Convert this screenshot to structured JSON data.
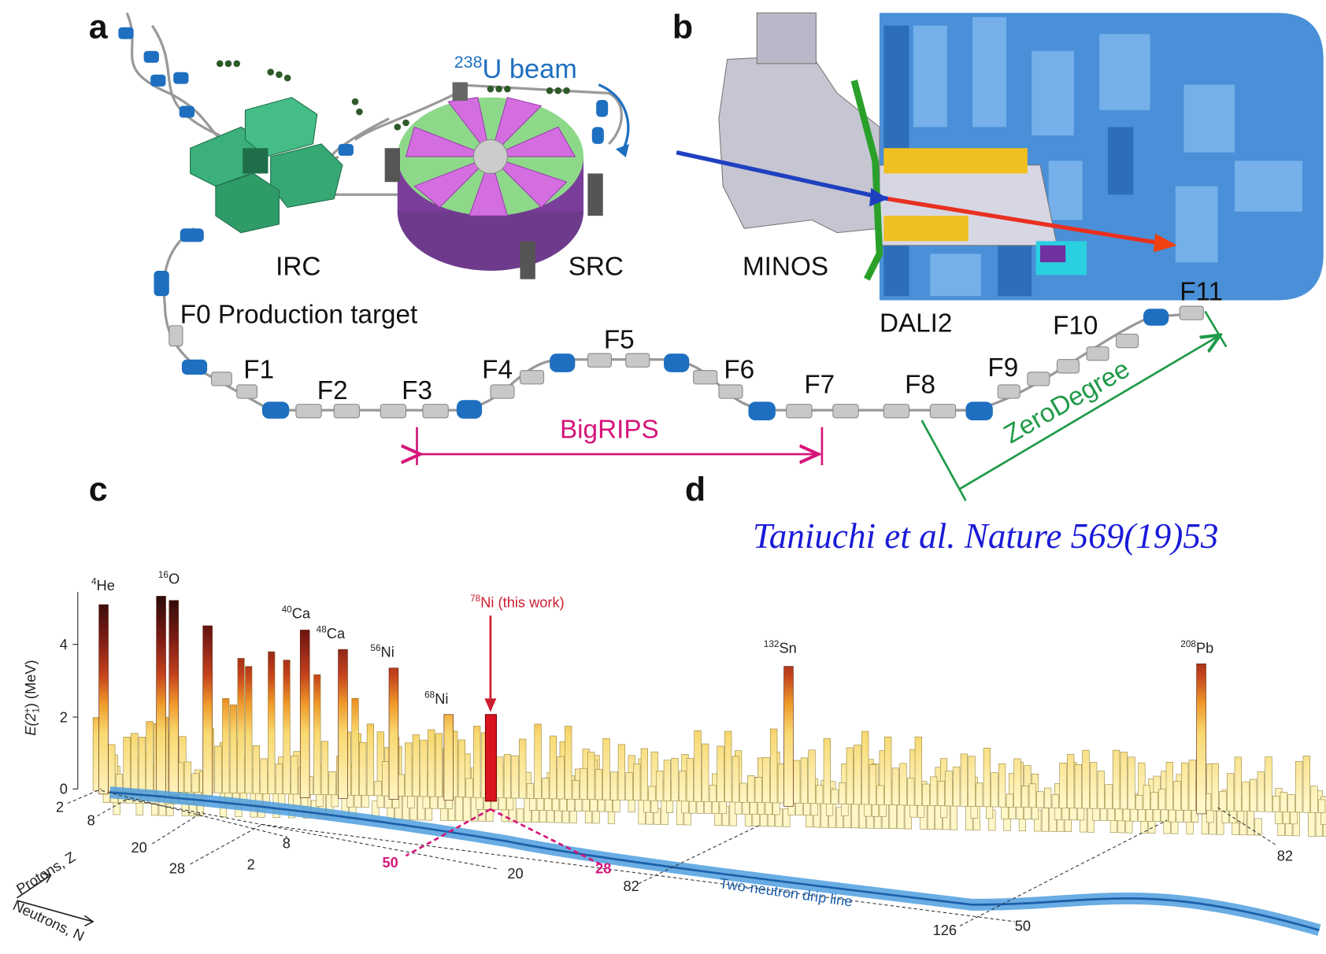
{
  "panel_a": {
    "label": "a",
    "beam": {
      "sup": "238",
      "text": "U beam"
    },
    "irc": "IRC",
    "src": "SRC",
    "f0": "F0 Production target",
    "focal_planes": [
      "F1",
      "F2",
      "F3",
      "F4",
      "F5",
      "F6",
      "F7",
      "F8",
      "F9",
      "F10",
      "F11"
    ],
    "bigrips": "BigRIPS",
    "zerodegree": "ZeroDegree"
  },
  "panel_b": {
    "label": "b",
    "minos": "MINOS",
    "dali2": "DALI2"
  },
  "panel_c": {
    "label": "c"
  },
  "panel_d": {
    "label": "d"
  },
  "citation": "Taniuchi et al. Nature 569(19)53",
  "systematics": {
    "y_axis": {
      "pre": "E(2",
      "sup": "+",
      "sub": "1",
      "post": ") (MeV)"
    },
    "y_ticks": [
      "0",
      "2",
      "4"
    ],
    "nuclei": [
      {
        "sup": "4",
        "text": "He"
      },
      {
        "sup": "16",
        "text": "O"
      },
      {
        "sup": "40",
        "text": "Ca"
      },
      {
        "sup": "48",
        "text": "Ca"
      },
      {
        "sup": "56",
        "text": "Ni"
      },
      {
        "sup": "68",
        "text": "Ni"
      },
      {
        "sup": "78",
        "text": "Ni (this work)"
      },
      {
        "sup": "132",
        "text": "Sn"
      },
      {
        "sup": "208",
        "text": "Pb"
      }
    ],
    "axis_numbers": [
      "2",
      "8",
      "20",
      "28",
      "8",
      "2",
      "50",
      "20",
      "28",
      "82",
      "126",
      "50",
      "82"
    ],
    "protons_label": "Protons, Z",
    "neutrons_label": "Neutrons, N",
    "drip_line_label": "Two-neutron drip line"
  }
}
